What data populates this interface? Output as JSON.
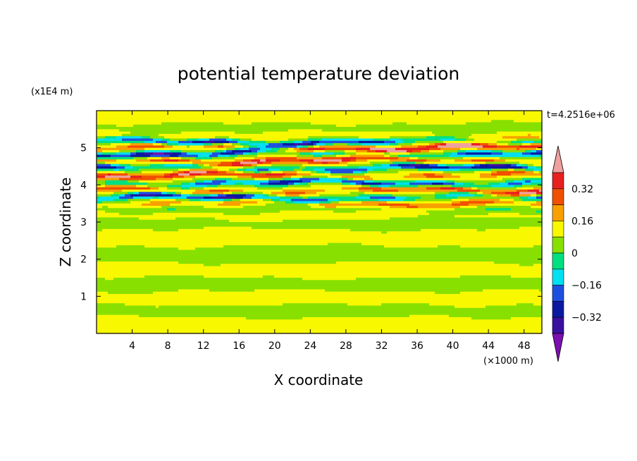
{
  "chart_data": {
    "type": "heatmap",
    "title": "potential temperature deviation",
    "xlabel": "X coordinate",
    "ylabel": "Z coordinate",
    "x_unit": "(×1000 m)",
    "y_unit": "(x1E4 m)",
    "time_label": "t=4.2516e+06",
    "xlim": [
      0,
      50
    ],
    "ylim": [
      0,
      6
    ],
    "x_ticks": [
      4,
      8,
      12,
      16,
      20,
      24,
      28,
      32,
      36,
      40,
      44,
      48
    ],
    "y_ticks": [
      1,
      2,
      3,
      4,
      5
    ],
    "colorbar": {
      "levels": [
        -0.48,
        -0.4,
        -0.32,
        -0.24,
        -0.16,
        -0.08,
        0,
        0.08,
        0.16,
        0.24,
        0.32,
        0.4
      ],
      "labels": [
        {
          "value": 0.32,
          "text": "0.32"
        },
        {
          "value": 0.16,
          "text": "0.16"
        },
        {
          "value": 0,
          "text": "0"
        },
        {
          "value": -0.16,
          "text": "−0.16"
        },
        {
          "value": -0.32,
          "text": "−0.32"
        }
      ],
      "colors": [
        "#7b0fb0",
        "#3a10a0",
        "#0a1aa0",
        "#1e50e0",
        "#00e0f0",
        "#00e080",
        "#88e000",
        "#f8f800",
        "#f8a000",
        "#f05000",
        "#e82020",
        "#f0a0a0"
      ]
    },
    "bands": [
      {
        "z": 0.25,
        "v": 0.02,
        "amp": 0.04
      },
      {
        "z": 0.6,
        "v": -0.02,
        "amp": 0.04
      },
      {
        "z": 0.97,
        "v": 0.06,
        "amp": 0.12
      },
      {
        "z": 1.3,
        "v": -0.03,
        "amp": 0.05
      },
      {
        "z": 1.7,
        "v": 0.03,
        "amp": 0.05
      },
      {
        "z": 2.1,
        "v": -0.02,
        "amp": 0.05
      },
      {
        "z": 2.6,
        "v": 0.02,
        "amp": 0.05
      },
      {
        "z": 3.0,
        "v": -0.02,
        "amp": 0.05
      },
      {
        "z": 3.2,
        "v": 0.05,
        "amp": 0.08
      },
      {
        "z": 3.35,
        "v": -0.1,
        "amp": 0.12
      },
      {
        "z": 3.5,
        "v": 0.2,
        "amp": 0.25
      },
      {
        "z": 3.65,
        "v": -0.38,
        "amp": 0.25
      },
      {
        "z": 3.85,
        "v": 0.3,
        "amp": 0.25
      },
      {
        "z": 4.05,
        "v": -0.35,
        "amp": 0.25
      },
      {
        "z": 4.25,
        "v": 0.3,
        "amp": 0.25
      },
      {
        "z": 4.45,
        "v": -0.4,
        "amp": 0.25
      },
      {
        "z": 4.65,
        "v": 0.3,
        "amp": 0.25
      },
      {
        "z": 4.85,
        "v": -0.42,
        "amp": 0.25
      },
      {
        "z": 5.0,
        "v": 0.38,
        "amp": 0.25
      },
      {
        "z": 5.15,
        "v": -0.4,
        "amp": 0.2
      },
      {
        "z": 5.3,
        "v": 0.1,
        "amp": 0.15
      },
      {
        "z": 5.5,
        "v": -0.02,
        "amp": 0.05
      },
      {
        "z": 5.8,
        "v": 0.02,
        "amp": 0.04
      }
    ]
  }
}
